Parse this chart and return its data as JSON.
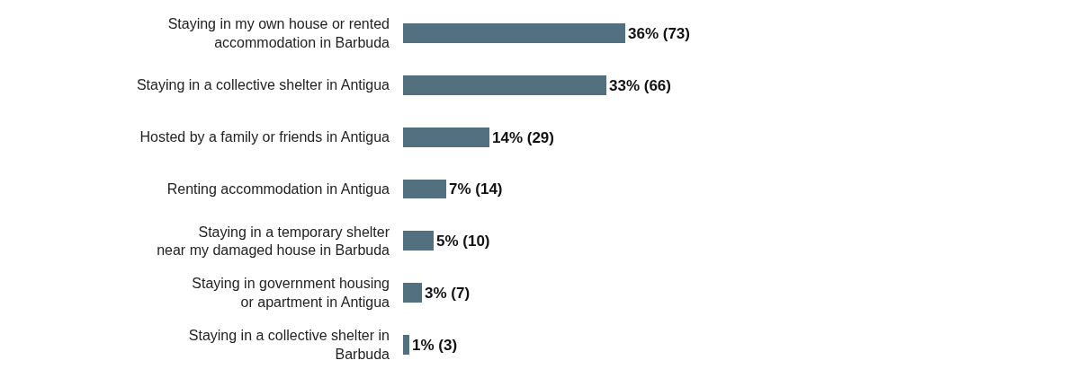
{
  "chart_data": {
    "type": "bar",
    "orientation": "horizontal",
    "categories": [
      "Staying in my own house or rented\naccommodation in Barbuda",
      "Staying in a collective shelter in Antigua",
      "Hosted by a family or friends in Antigua",
      "Renting accommodation in Antigua",
      "Staying in a temporary shelter\nnear my damaged house in Barbuda",
      "Staying in government housing\nor apartment in Antigua",
      "Staying in a collective shelter in\nBarbuda"
    ],
    "values": [
      36,
      33,
      14,
      7,
      5,
      3,
      1
    ],
    "value_labels": [
      "36% (73)",
      "33% (66)",
      "14% (29)",
      "7% (14)",
      "5% (10)",
      "3% (7)",
      "1% (3)"
    ],
    "color": "#52707f"
  }
}
